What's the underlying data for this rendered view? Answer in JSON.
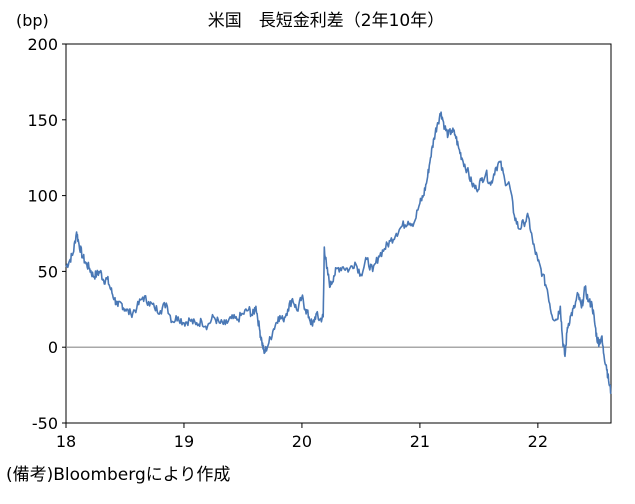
{
  "chart_data": {
    "type": "line",
    "title": "米国　長短金利差（2年10年）",
    "unit_label": "(bp)",
    "source": "(備考)Bloombergにより作成",
    "x_ticks": [
      "18",
      "19",
      "20",
      "21",
      "22"
    ],
    "y_ticks": [
      "200",
      "150",
      "100",
      "50",
      "0",
      "-50"
    ],
    "ylim": [
      -50,
      200
    ],
    "xlim": [
      2018.0,
      2022.62
    ],
    "zero_line": true,
    "grid": false,
    "colors": {
      "line": "#4a78b5",
      "axis": "#000000",
      "zero": "#8c8c8c"
    },
    "series": [
      {
        "x": [
          2018.0,
          2018.03,
          2018.06,
          2018.09,
          2018.11,
          2018.14,
          2018.17,
          2018.2,
          2018.23,
          2018.26,
          2018.29,
          2018.32,
          2018.35,
          2018.38,
          2018.41,
          2018.44,
          2018.47,
          2018.5,
          2018.55,
          2018.6,
          2018.65,
          2018.7,
          2018.75,
          2018.8,
          2018.85,
          2018.9,
          2018.95,
          2019.0,
          2019.05,
          2019.1,
          2019.15,
          2019.2,
          2019.25,
          2019.3,
          2019.35,
          2019.4,
          2019.45,
          2019.5,
          2019.55,
          2019.58,
          2019.61,
          2019.64,
          2019.66,
          2019.68,
          2019.72,
          2019.76,
          2019.8,
          2019.84,
          2019.88,
          2019.92,
          2019.96,
          2020.0,
          2020.03,
          2020.06,
          2020.09,
          2020.12,
          2020.15,
          2020.18,
          2020.19,
          2020.21,
          2020.24,
          2020.27,
          2020.3,
          2020.35,
          2020.4,
          2020.45,
          2020.5,
          2020.55,
          2020.6,
          2020.65,
          2020.7,
          2020.75,
          2020.8,
          2020.85,
          2020.9,
          2020.95,
          2021.0,
          2021.03,
          2021.06,
          2021.09,
          2021.12,
          2021.15,
          2021.18,
          2021.21,
          2021.24,
          2021.27,
          2021.3,
          2021.33,
          2021.36,
          2021.4,
          2021.44,
          2021.48,
          2021.52,
          2021.56,
          2021.6,
          2021.64,
          2021.68,
          2021.72,
          2021.76,
          2021.8,
          2021.84,
          2021.88,
          2021.92,
          2021.96,
          2022.0,
          2022.04,
          2022.08,
          2022.12,
          2022.16,
          2022.19,
          2022.21,
          2022.23,
          2022.25,
          2022.28,
          2022.31,
          2022.34,
          2022.37,
          2022.4,
          2022.43,
          2022.46,
          2022.48,
          2022.5,
          2022.52,
          2022.54,
          2022.56,
          2022.58,
          2022.6,
          2022.62
        ],
        "values": [
          53,
          57,
          62,
          76,
          68,
          60,
          55,
          52,
          47,
          48,
          50,
          44,
          45,
          38,
          32,
          27,
          29,
          25,
          22,
          26,
          33,
          30,
          26,
          24,
          29,
          17,
          20,
          16,
          18,
          15,
          17,
          14,
          20,
          16,
          15,
          19,
          18,
          22,
          25,
          21,
          27,
          12,
          4,
          -4,
          3,
          12,
          20,
          18,
          25,
          32,
          24,
          33,
          25,
          20,
          14,
          22,
          18,
          20,
          66,
          52,
          40,
          47,
          52,
          53,
          51,
          56,
          48,
          58,
          50,
          60,
          65,
          70,
          75,
          80,
          83,
          82,
          95,
          100,
          110,
          125,
          138,
          148,
          155,
          145,
          140,
          143,
          140,
          131,
          124,
          117,
          108,
          104,
          110,
          115,
          107,
          118,
          122,
          110,
          107,
          87,
          78,
          82,
          86,
          68,
          57,
          48,
          38,
          21,
          18,
          27,
          5,
          -6,
          13,
          21,
          26,
          35,
          26,
          39,
          30,
          28,
          17,
          6,
          3,
          7,
          -5,
          -12,
          -22,
          -30
        ]
      }
    ]
  }
}
